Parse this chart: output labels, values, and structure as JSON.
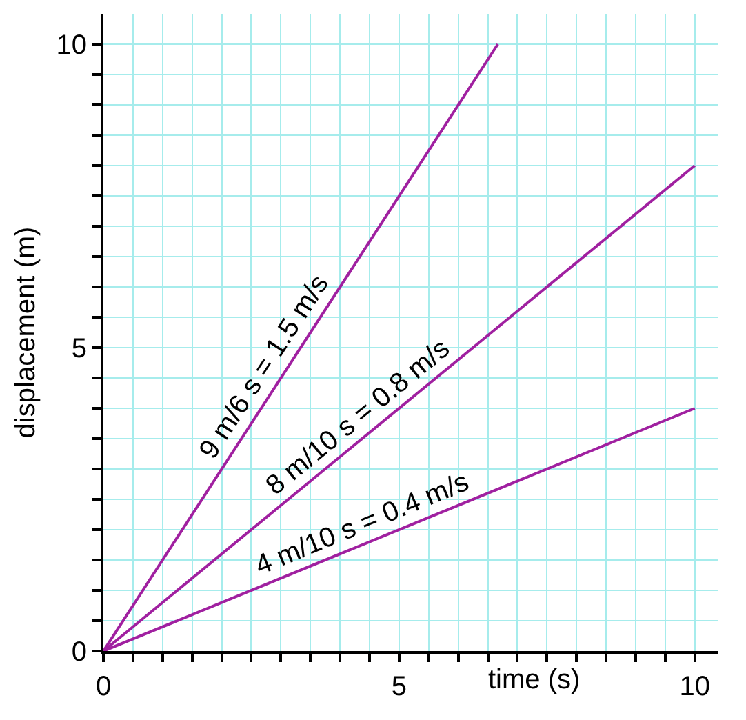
{
  "chart_data": {
    "type": "line",
    "xlabel": "time (s)",
    "ylabel": "displacement (m)",
    "series": [
      {
        "x": [
          0,
          6.67
        ],
        "values": [
          0,
          10
        ],
        "color": "#a020a0"
      },
      {
        "x": [
          0,
          10
        ],
        "values": [
          0,
          8
        ],
        "color": "#a020a0"
      },
      {
        "x": [
          0,
          10
        ],
        "values": [
          0,
          4
        ],
        "color": "#a020a0"
      }
    ],
    "xlim": [
      0,
      10.4
    ],
    "ylim": [
      0,
      10.5
    ],
    "xticks": [
      0,
      {
        "value": 0.5,
        "label": null
      },
      {
        "value": 1,
        "label": null
      },
      {
        "value": 1.5,
        "label": null
      },
      {
        "value": 2,
        "label": null
      },
      {
        "value": 2.5,
        "label": null
      },
      {
        "value": 3,
        "label": null
      },
      {
        "value": 3.5,
        "label": null
      },
      {
        "value": 4,
        "label": null
      },
      {
        "value": 4.5,
        "label": null
      },
      5,
      {
        "value": 5.5,
        "label": null
      },
      {
        "value": 6,
        "label": null
      },
      {
        "value": 6.5,
        "label": null
      },
      {
        "value": 7,
        "label": null
      },
      {
        "value": 7.5,
        "label": null
      },
      {
        "value": 8,
        "label": null
      },
      {
        "value": 8.5,
        "label": null
      },
      {
        "value": 9,
        "label": null
      },
      {
        "value": 9.5,
        "label": null
      },
      10
    ],
    "yticks": [
      0,
      {
        "value": 0.5,
        "label": null
      },
      {
        "value": 1,
        "label": null
      },
      {
        "value": 1.5,
        "label": null
      },
      {
        "value": 2,
        "label": null
      },
      {
        "value": 2.5,
        "label": null
      },
      {
        "value": 3,
        "label": null
      },
      {
        "value": 3.5,
        "label": null
      },
      {
        "value": 4,
        "label": null
      },
      {
        "value": 4.5,
        "label": null
      },
      5,
      {
        "value": 5.5,
        "label": null
      },
      {
        "value": 6,
        "label": null
      },
      {
        "value": 6.5,
        "label": null
      },
      {
        "value": 7,
        "label": null
      },
      {
        "value": 7.5,
        "label": null
      },
      {
        "value": 8,
        "label": null
      },
      {
        "value": 8.5,
        "label": null
      },
      {
        "value": 9,
        "label": null
      },
      {
        "value": 9.5,
        "label": null
      },
      10
    ],
    "annotations": [
      "9 m/6 s = 1.5 m/s",
      "8 m/10 s = 0.8 m/s",
      "4 m/10 s = 0.4 m/s"
    ],
    "grid": true,
    "marker": "none",
    "line_style": "solid"
  }
}
